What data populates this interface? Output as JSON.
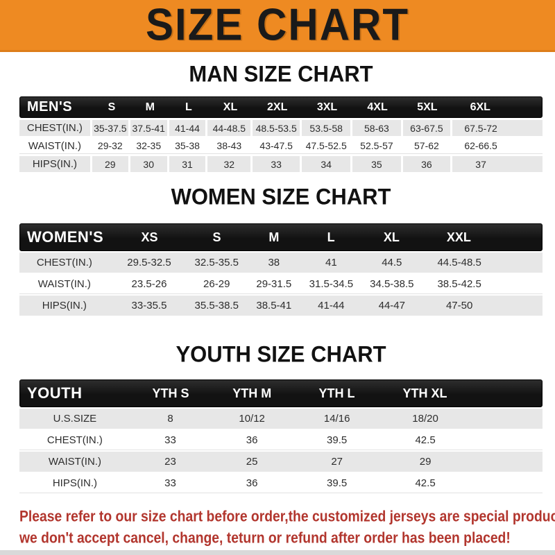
{
  "banner": {
    "title": "SIZE CHART"
  },
  "colors": {
    "banner_bg": "#ee8a22",
    "banner_edge": "#dd7d1a",
    "bar_bg": "#121212",
    "row_alt": "#e7e7e7",
    "footer_red": "#b2362e"
  },
  "sections": [
    {
      "id": "men",
      "title": "MAN SIZE CHART",
      "header": {
        "label": "MEN'S",
        "cols": [
          "S",
          "M",
          "L",
          "XL",
          "2XL",
          "3XL",
          "4XL",
          "5XL",
          "6XL"
        ]
      },
      "rows": [
        {
          "label": "CHEST(IN.)",
          "values": [
            "35-37.5",
            "37.5-41",
            "41-44",
            "44-48.5",
            "48.5-53.5",
            "53.5-58",
            "58-63",
            "63-67.5",
            "67.5-72"
          ]
        },
        {
          "label": "WAIST(IN.)",
          "values": [
            "29-32",
            "32-35",
            "35-38",
            "38-43",
            "43-47.5",
            "47.5-52.5",
            "52.5-57",
            "57-62",
            "62-66.5"
          ]
        },
        {
          "label": "HIPS(IN.)",
          "values": [
            "29",
            "30",
            "31",
            "32",
            "33",
            "34",
            "35",
            "36",
            "37"
          ]
        }
      ]
    },
    {
      "id": "women",
      "title": "WOMEN SIZE CHART",
      "header": {
        "label": "WOMEN'S",
        "cols": [
          "XS",
          "S",
          "M",
          "L",
          "XL",
          "XXL"
        ]
      },
      "rows": [
        {
          "label": "CHEST(IN.)",
          "values": [
            "29.5-32.5",
            "32.5-35.5",
            "38",
            "41",
            "44.5",
            "44.5-48.5"
          ]
        },
        {
          "label": "WAIST(IN.)",
          "values": [
            "23.5-26",
            "26-29",
            "29-31.5",
            "31.5-34.5",
            "34.5-38.5",
            "38.5-42.5"
          ]
        },
        {
          "label": "HIPS(IN.)",
          "values": [
            "33-35.5",
            "35.5-38.5",
            "38.5-41",
            "41-44",
            "44-47",
            "47-50"
          ]
        }
      ]
    },
    {
      "id": "youth",
      "title": "YOUTH SIZE CHART",
      "header": {
        "label": "YOUTH",
        "cols": [
          "YTH S",
          "YTH M",
          "YTH L",
          "YTH XL",
          ""
        ]
      },
      "rows": [
        {
          "label": "U.S.SIZE",
          "values": [
            "8",
            "10/12",
            "14/16",
            "18/20",
            ""
          ]
        },
        {
          "label": "CHEST(IN.)",
          "values": [
            "33",
            "36",
            "39.5",
            "42.5",
            ""
          ]
        },
        {
          "label": "WAIST(IN.)",
          "values": [
            "23",
            "25",
            "27",
            "29",
            ""
          ]
        },
        {
          "label": "HIPS(IN.)",
          "values": [
            "33",
            "36",
            "39.5",
            "42.5",
            ""
          ]
        }
      ]
    }
  ],
  "footer": {
    "line1": "Please refer to our size chart before order,the customized jerseys are special products,",
    "line2": "we don't accept cancel, change, teturn or refund after order has been placed!"
  }
}
